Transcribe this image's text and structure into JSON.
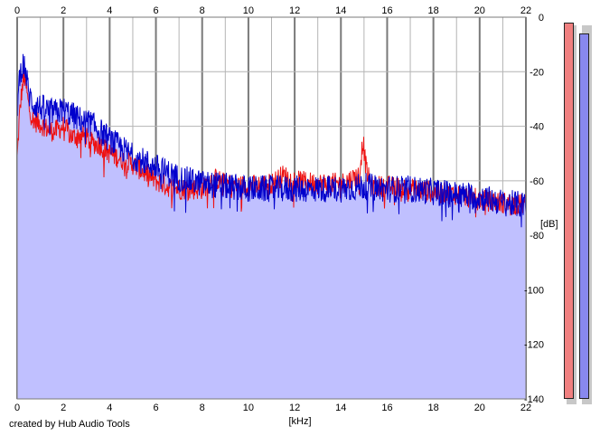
{
  "app": {
    "credit_text": "created by Hub Audio Tools"
  },
  "colors": {
    "fill": "#c0c0ff",
    "grid": "#b4b4b4",
    "grid_major": "#7a7a7a",
    "left_channel": "#ee1111",
    "right_channel": "#0000cc",
    "meter_left": "#f08080",
    "meter_right": "#8888ee"
  },
  "chart_data": {
    "type": "line",
    "title": "",
    "xlabel": "[kHz]",
    "ylabel": "[dB]",
    "xlim": [
      0,
      22
    ],
    "ylim": [
      -140,
      0
    ],
    "x_ticks": [
      "0",
      "2",
      "4",
      "6",
      "8",
      "10",
      "12",
      "14",
      "16",
      "18",
      "20",
      "22"
    ],
    "y_ticks": [
      "0",
      "-20",
      "-40",
      "-60",
      "-80",
      "-100",
      "-120",
      "-140"
    ],
    "grid": true,
    "series": [
      {
        "color": "#ee1111",
        "x": [
          0,
          0.1,
          0.2,
          0.3,
          0.4,
          0.5,
          0.7,
          1,
          1.3,
          1.6,
          2,
          2.4,
          2.8,
          3.2,
          3.6,
          4,
          4.5,
          5,
          5.5,
          6,
          6.5,
          7,
          8,
          8.5,
          9,
          10,
          11,
          11.5,
          12,
          13,
          14,
          14.8,
          14.95,
          15.1,
          15.3,
          16,
          17,
          18,
          19,
          20,
          21,
          22
        ],
        "values": [
          -52,
          -36,
          -27,
          -22,
          -26,
          -33,
          -38,
          -39,
          -41,
          -42,
          -40,
          -44,
          -43,
          -46,
          -47,
          -50,
          -52,
          -54,
          -57,
          -60,
          -62,
          -63,
          -63,
          -59,
          -61,
          -62,
          -61,
          -58,
          -60,
          -61,
          -61,
          -58,
          -45,
          -56,
          -62,
          -62,
          -63,
          -64,
          -65,
          -67,
          -68,
          -69
        ]
      },
      {
        "color": "#0000cc",
        "x": [
          0,
          0.1,
          0.2,
          0.3,
          0.4,
          0.5,
          0.7,
          1,
          1.3,
          1.6,
          2,
          2.4,
          2.8,
          3.2,
          3.6,
          4,
          4.5,
          5,
          5.5,
          6,
          6.5,
          7,
          8,
          9,
          10,
          11,
          12,
          13,
          14,
          15,
          16,
          17,
          18,
          19,
          20,
          21,
          22
        ],
        "values": [
          -34,
          -22,
          -18,
          -17,
          -22,
          -28,
          -32,
          -33,
          -34,
          -35,
          -34,
          -36,
          -38,
          -39,
          -42,
          -45,
          -48,
          -51,
          -53,
          -55,
          -57,
          -59,
          -61,
          -62,
          -63,
          -63,
          -63,
          -63,
          -63,
          -62,
          -63,
          -63,
          -64,
          -65,
          -66,
          -68,
          -69
        ]
      }
    ]
  },
  "meters": {
    "left_level": 1.0,
    "right_level": 0.97
  }
}
